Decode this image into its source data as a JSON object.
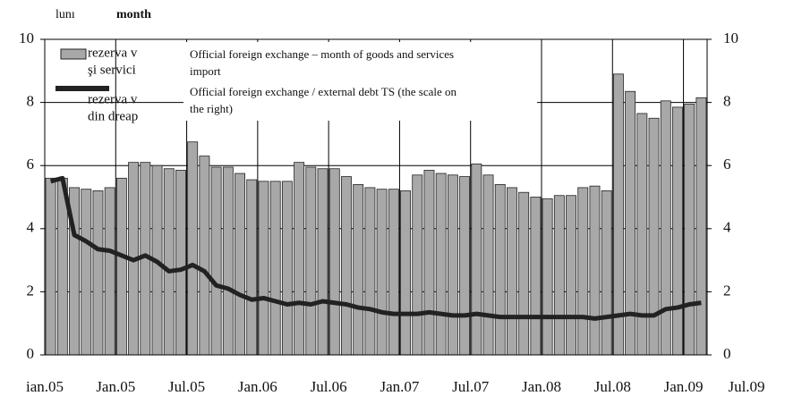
{
  "chart_data": {
    "type": "bar_line",
    "header_left": "lunı",
    "header_right": "month",
    "categories": [
      "ian.05",
      null,
      null,
      null,
      null,
      null,
      "Jan.05",
      null,
      null,
      null,
      null,
      null,
      "Jul.05",
      null,
      null,
      null,
      null,
      null,
      "Jan.06",
      null,
      null,
      null,
      null,
      null,
      "Jul.06",
      null,
      null,
      null,
      null,
      null,
      "Jan.07",
      null,
      null,
      null,
      null,
      null,
      "Jul.07",
      null,
      null,
      null,
      null,
      null,
      "Jan.08",
      null,
      null,
      null,
      null,
      null,
      "Jul.08",
      null,
      null,
      null,
      null,
      null,
      "Jan.09",
      null
    ],
    "extra_x_label": "Jul.09",
    "series": [
      {
        "name": [
          "Official foreign exchange – month of goods and services",
          "import"
        ],
        "color": "#a8a8a8",
        "values": [
          5.6,
          5.6,
          5.3,
          5.25,
          5.2,
          5.3,
          5.6,
          6.1,
          6.1,
          6.0,
          5.9,
          5.85,
          6.75,
          6.3,
          5.95,
          5.95,
          5.75,
          5.55,
          5.5,
          5.5,
          5.5,
          6.1,
          5.95,
          5.9,
          5.9,
          5.65,
          5.4,
          5.3,
          5.25,
          5.25,
          5.2,
          5.7,
          5.85,
          5.75,
          5.7,
          5.65,
          6.05,
          5.7,
          5.4,
          5.3,
          5.15,
          5.0,
          4.95,
          5.05,
          5.05,
          5.3,
          5.35,
          5.2,
          8.9,
          8.35,
          7.65,
          7.5,
          8.05,
          7.85,
          7.95,
          8.15
        ]
      },
      {
        "name": [
          "Official foreign exchange / external debt TS (the scale on",
          "the right)"
        ],
        "color": "#222222",
        "axis": "y2",
        "values": [
          5.5,
          5.6,
          3.8,
          3.6,
          3.35,
          3.3,
          3.15,
          3.0,
          3.15,
          2.95,
          2.65,
          2.7,
          2.85,
          2.65,
          2.2,
          2.1,
          1.9,
          1.75,
          1.8,
          1.7,
          1.6,
          1.65,
          1.6,
          1.7,
          1.65,
          1.6,
          1.5,
          1.45,
          1.35,
          1.3,
          1.3,
          1.3,
          1.35,
          1.3,
          1.25,
          1.25,
          1.3,
          1.25,
          1.2,
          1.2,
          1.2,
          1.2,
          1.2,
          1.2,
          1.2,
          1.2,
          1.15,
          1.2,
          1.25,
          1.3,
          1.25,
          1.25,
          1.45,
          1.5,
          1.6,
          1.65
        ]
      }
    ],
    "legend_underlay": [
      "rezerva v",
      "şi servici",
      "rezerva v",
      "din dreap"
    ],
    "ylim": [
      0,
      10
    ],
    "yticks": [
      0,
      2,
      4,
      6,
      8,
      10
    ],
    "y2lim": [
      0,
      10
    ],
    "y2ticks": [
      0,
      2,
      4,
      6,
      8,
      10
    ],
    "grid": true
  }
}
